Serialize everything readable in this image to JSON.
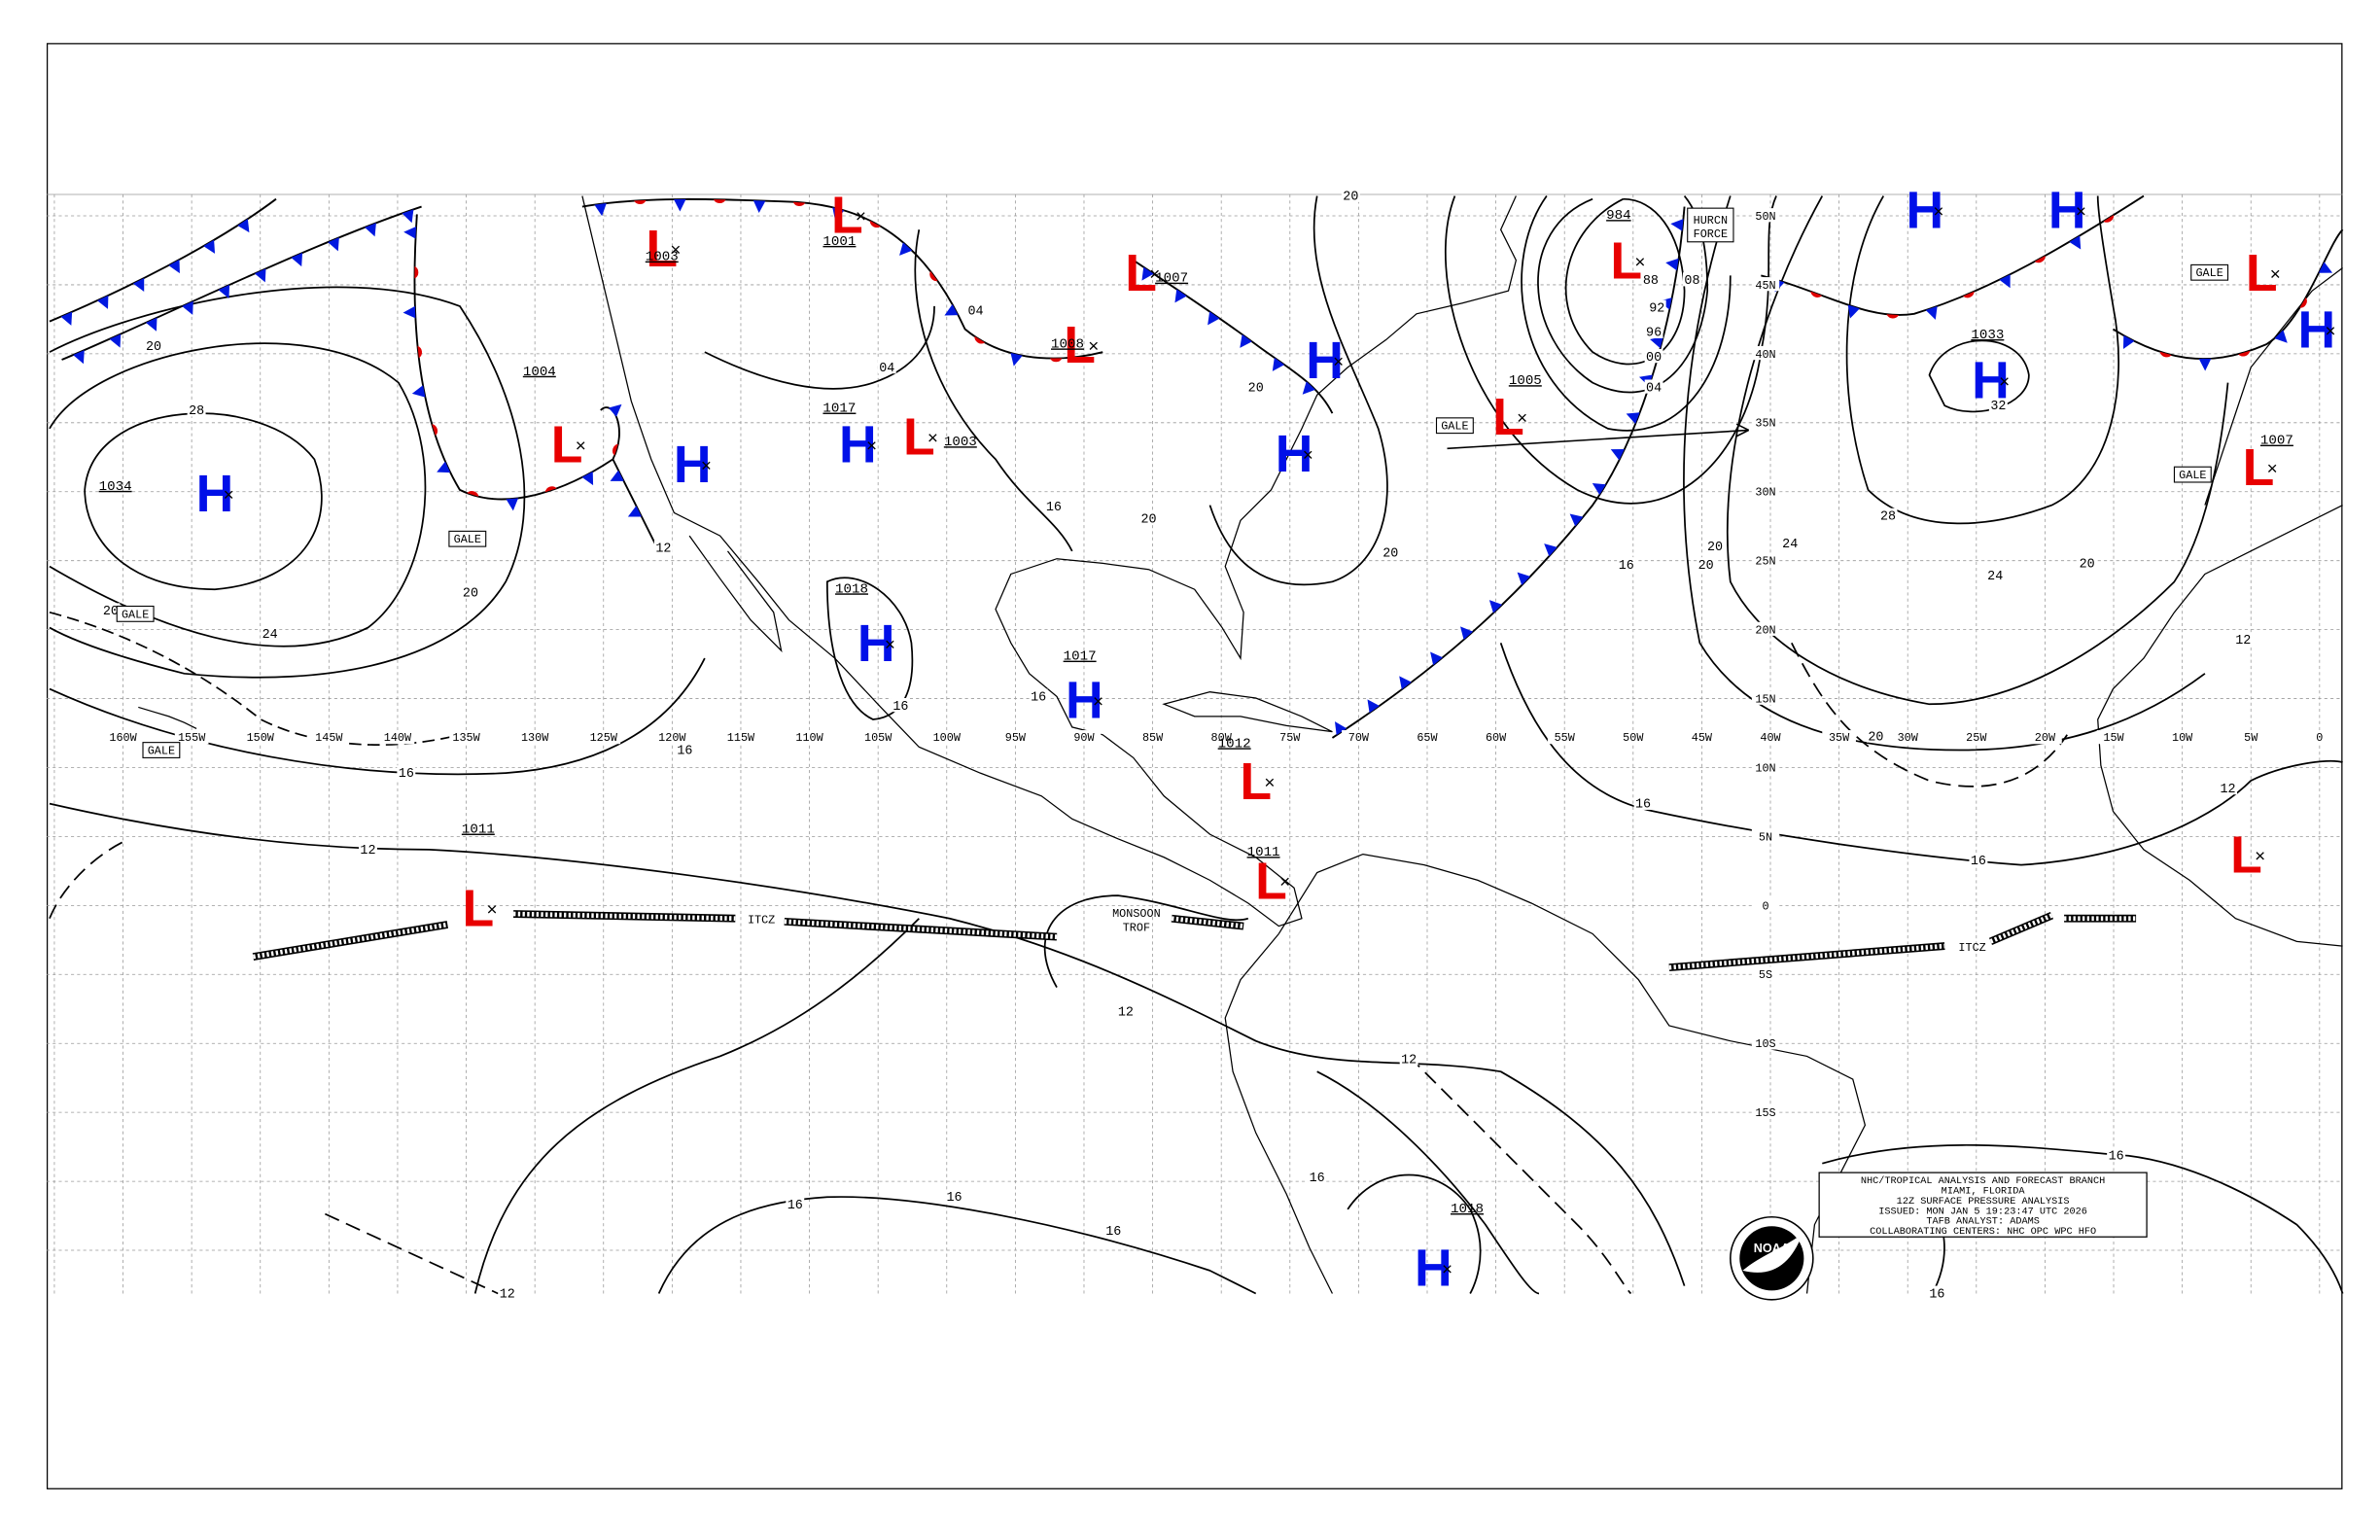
{
  "map": {
    "longitude_labels": [
      "160W",
      "155W",
      "150W",
      "145W",
      "140W",
      "135W",
      "130W",
      "125W",
      "120W",
      "115W",
      "110W",
      "105W",
      "100W",
      "95W",
      "90W",
      "85W",
      "80W",
      "75W",
      "70W",
      "65W",
      "60W",
      "55W",
      "50W",
      "45W",
      "40W",
      "35W",
      "30W",
      "25W",
      "20W",
      "15W",
      "10W",
      "5W",
      "0"
    ],
    "latitude_labels": [
      "50N",
      "45N",
      "40N",
      "35N",
      "30N",
      "25N",
      "20N",
      "15N",
      "10N",
      "5N",
      "0",
      "5S",
      "10S",
      "15S"
    ],
    "pressure_centers": [
      {
        "type": "H",
        "pressure": "1034"
      },
      {
        "type": "L",
        "pressure": "1004"
      },
      {
        "type": "H"
      },
      {
        "type": "L",
        "pressure": "1003"
      },
      {
        "type": "L",
        "pressure": "1001"
      },
      {
        "type": "H",
        "pressure": "1017"
      },
      {
        "type": "L",
        "pressure": "1003"
      },
      {
        "type": "H",
        "pressure": "1018"
      },
      {
        "type": "H",
        "pressure": "1017"
      },
      {
        "type": "L",
        "pressure": "1008"
      },
      {
        "type": "L",
        "pressure": "1007"
      },
      {
        "type": "H"
      },
      {
        "type": "H"
      },
      {
        "type": "L",
        "pressure": "1012"
      },
      {
        "type": "L",
        "pressure": "1011"
      },
      {
        "type": "L",
        "pressure": "1011"
      },
      {
        "type": "L",
        "pressure": "1005"
      },
      {
        "type": "L",
        "pressure": "984"
      },
      {
        "type": "H"
      },
      {
        "type": "H"
      },
      {
        "type": "H",
        "pressure": "1033"
      },
      {
        "type": "L"
      },
      {
        "type": "H"
      },
      {
        "type": "L",
        "pressure": "1007"
      },
      {
        "type": "L"
      },
      {
        "type": "H",
        "pressure": "1018"
      }
    ],
    "isobar_labels": [
      "20",
      "28",
      "24",
      "20",
      "20",
      "16",
      "16",
      "12",
      "12",
      "04",
      "04",
      "16",
      "16",
      "20",
      "16",
      "20",
      "16",
      "20",
      "24",
      "20",
      "28",
      "24",
      "20",
      "32",
      "12",
      "12",
      "16",
      "16",
      "16",
      "16",
      "12",
      "12",
      "16",
      "16",
      "16",
      "12",
      "16",
      "08",
      "96",
      "92",
      "88",
      "00",
      "04",
      "20",
      "20",
      "20"
    ],
    "gale_labels": [
      "GALE",
      "GALE",
      "GALE",
      "GALE",
      "GALE",
      "GALE"
    ],
    "hurricane_force_label": [
      "HURCN",
      "FORCE"
    ],
    "itcz_labels": [
      "ITCZ",
      "ITCZ"
    ],
    "monsoon_trough_label": [
      "MONSOON",
      "TROF"
    ]
  },
  "info_box": {
    "lines": [
      "NHC/TROPICAL ANALYSIS AND FORECAST BRANCH",
      "MIAMI, FLORIDA",
      "12Z SURFACE PRESSURE ANALYSIS",
      "ISSUED: MON JAN 5 19:23:47 UTC 2026",
      "TAFB ANALYST: ADAMS",
      "COLLABORATING CENTERS: NHC OPC WPC HFO"
    ]
  },
  "logo": "NOAA"
}
